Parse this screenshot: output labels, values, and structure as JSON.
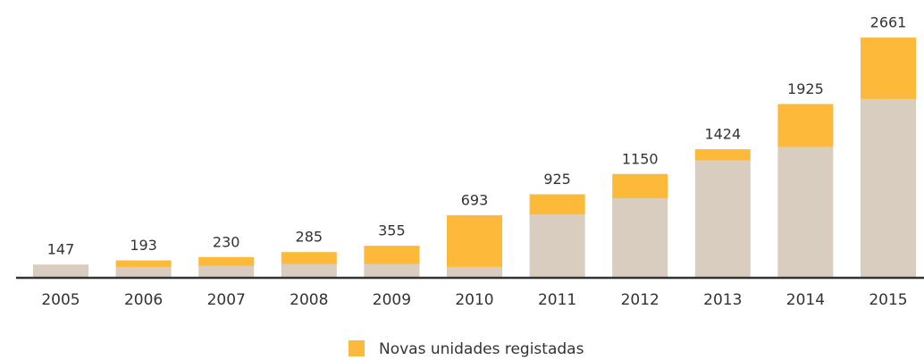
{
  "chart_data": {
    "type": "bar",
    "stacked": true,
    "categories": [
      "2005",
      "2006",
      "2007",
      "2008",
      "2009",
      "2010",
      "2011",
      "2012",
      "2013",
      "2014",
      "2015"
    ],
    "series": [
      {
        "color": "#d9cdc0",
        "values": [
          147,
          120,
          130,
          150,
          150,
          120,
          700,
          880,
          1300,
          1450,
          1980
        ]
      },
      {
        "name": "Novas unidades registadas",
        "color": "#fdb93a",
        "values": [
          0,
          73,
          100,
          135,
          205,
          573,
          225,
          270,
          124,
          475,
          681
        ]
      }
    ],
    "totals": [
      147,
      193,
      230,
      285,
      355,
      693,
      925,
      1150,
      1424,
      1925,
      2661
    ],
    "ylim": [
      0,
      2800
    ]
  }
}
